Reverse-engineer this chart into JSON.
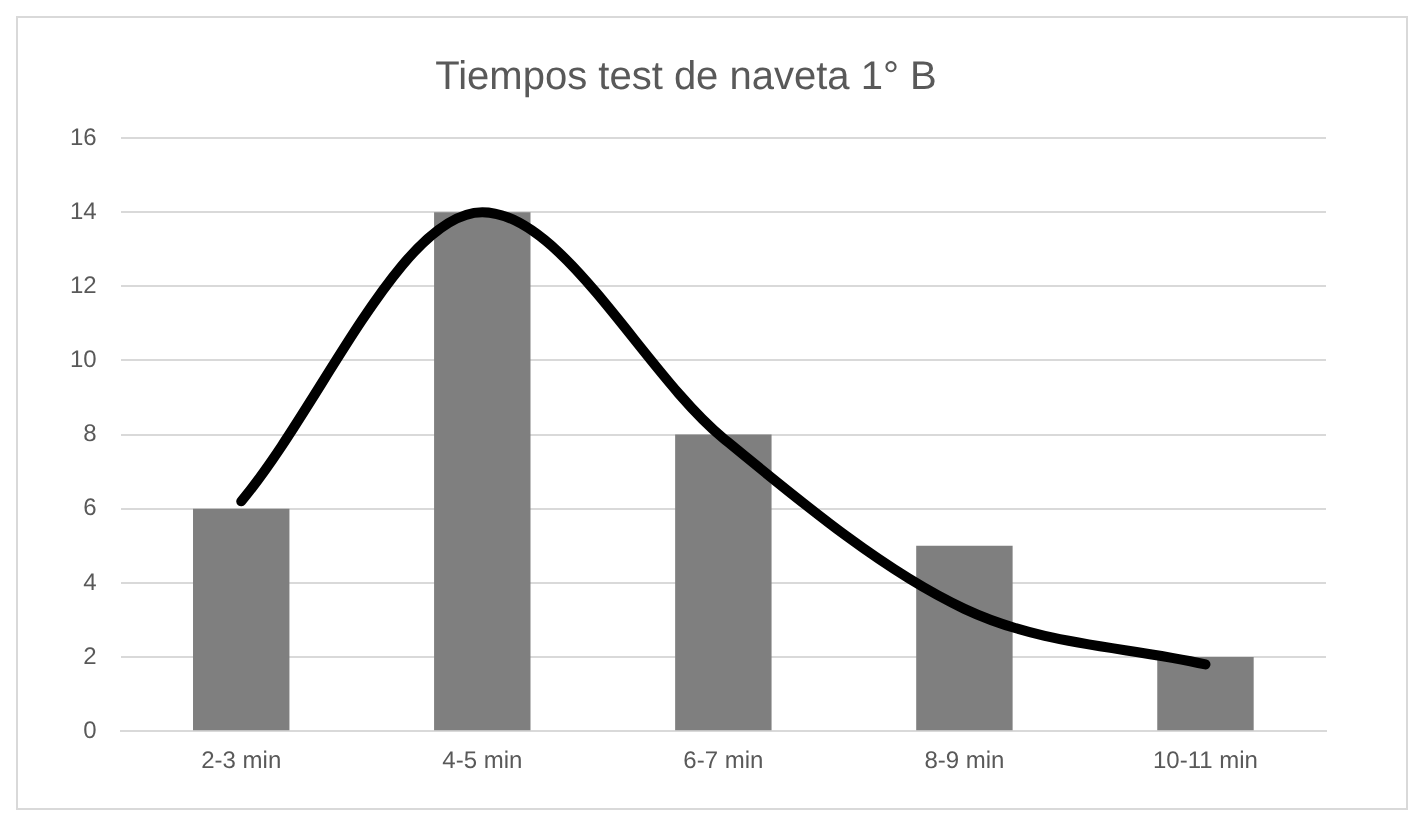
{
  "chart_data": {
    "type": "bar",
    "title": "Tiempos test de naveta 1° B",
    "categories": [
      "2-3 min",
      "4-5 min",
      "6-7 min",
      "8-9 min",
      "10-11 min"
    ],
    "series": [
      {
        "color": "#7f7f7f",
        "values": [
          6,
          14,
          8,
          5,
          2
        ]
      },
      {
        "type": "line",
        "color": "#000000",
        "values": [
          6.2,
          14,
          7.9,
          3.3,
          1.8
        ]
      }
    ],
    "ylim": [
      0,
      16
    ],
    "yticks": [
      0,
      2,
      4,
      6,
      8,
      10,
      12,
      14,
      16
    ],
    "grid": "y",
    "legend": false,
    "marker": "none",
    "line_style": "solid"
  }
}
